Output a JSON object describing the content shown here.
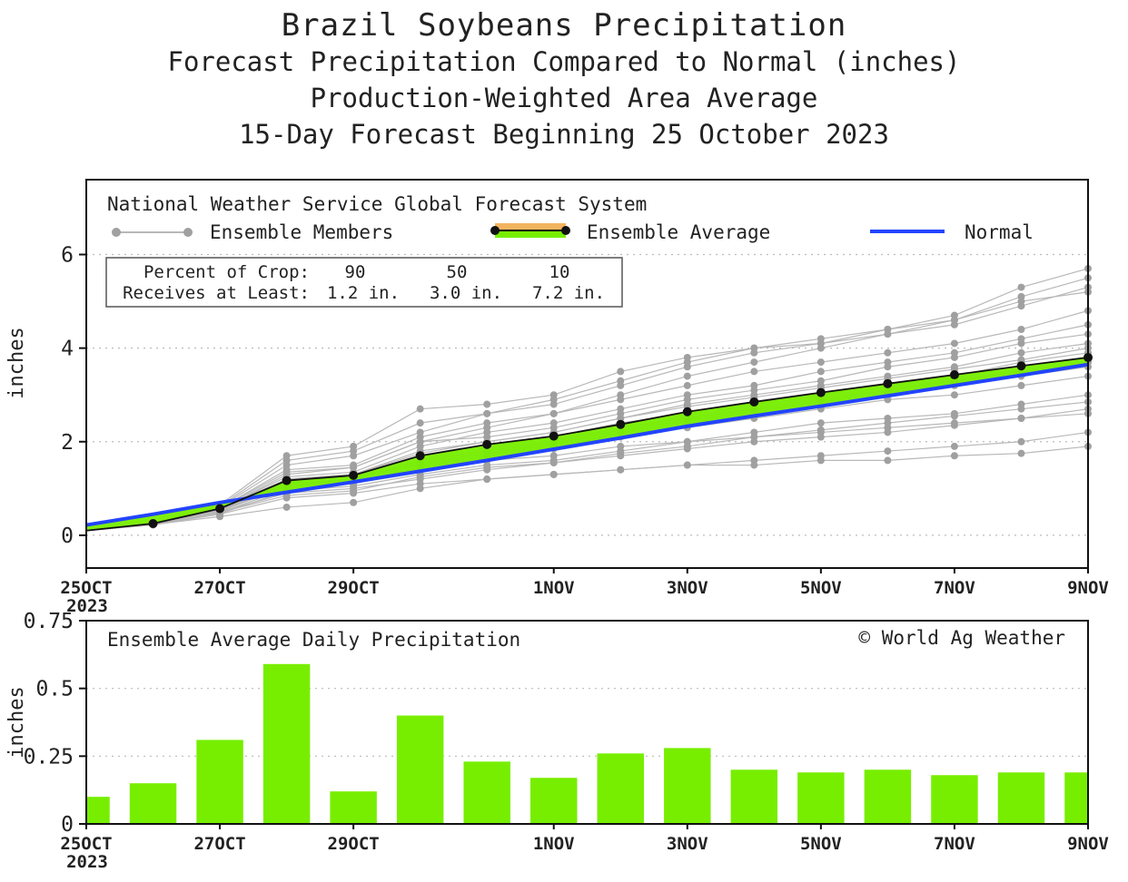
{
  "titles": {
    "main": "Brazil Soybeans Precipitation",
    "line2": "Forecast Precipitation Compared to Normal (inches)",
    "line3": "Production-Weighted Area Average",
    "line4": "15-Day Forecast Beginning 25 October 2023"
  },
  "colors": {
    "ensemble_members": "#b8b8b8",
    "ensemble_dots": "#a0a0a0",
    "ensemble_average": "#111111",
    "above_normal_fill": "#77ee00",
    "normal": "#2244ff",
    "bars": "#77ee00"
  },
  "chart_data": [
    {
      "type": "line",
      "source_label": "National Weather Service Global Forecast System",
      "legend": {
        "members": "Ensemble Members",
        "average": "Ensemble Average",
        "normal": "Normal"
      },
      "crop_box": {
        "row1_label": "Percent of Crop:",
        "row1_values": [
          "90",
          "50",
          "10"
        ],
        "row2_label": "Receives at Least:",
        "row2_values": [
          "1.2 in.",
          "3.0 in.",
          "7.2 in."
        ]
      },
      "ylabel": "inches",
      "ylim": [
        -0.7,
        7.6
      ],
      "yticks": [
        "0",
        "2",
        "4",
        "6"
      ],
      "ytick_values": [
        0,
        2,
        4,
        6
      ],
      "xticks": [
        {
          "day": 0,
          "label": "25OCT"
        },
        {
          "day": 2,
          "label": "27OCT"
        },
        {
          "day": 4,
          "label": "29OCT"
        },
        {
          "day": 7,
          "label": "1NOV"
        },
        {
          "day": 9,
          "label": "3NOV"
        },
        {
          "day": 11,
          "label": "5NOV"
        },
        {
          "day": 13,
          "label": "7NOV"
        },
        {
          "day": 15,
          "label": "9NOV"
        }
      ],
      "x_year": "2023",
      "ensemble_average": [
        0.1,
        0.25,
        0.57,
        1.17,
        1.28,
        1.7,
        1.94,
        2.12,
        2.37,
        2.64,
        2.85,
        3.05,
        3.24,
        3.43,
        3.62,
        3.8
      ],
      "normal": [
        0.22,
        0.45,
        0.7,
        0.92,
        1.14,
        1.37,
        1.6,
        1.84,
        2.08,
        2.33,
        2.55,
        2.76,
        2.98,
        3.2,
        3.42,
        3.65
      ],
      "ensemble_members": [
        [
          0.1,
          0.24,
          0.5,
          0.9,
          1.0,
          1.2,
          1.4,
          1.55,
          1.75,
          1.9,
          2.1,
          2.25,
          2.4,
          2.55,
          2.7,
          2.85
        ],
        [
          0.1,
          0.25,
          0.55,
          1.3,
          1.45,
          2.0,
          2.3,
          2.6,
          3.0,
          3.4,
          3.7,
          4.0,
          4.3,
          4.5,
          4.9,
          5.3
        ],
        [
          0.1,
          0.26,
          0.6,
          1.5,
          1.7,
          2.2,
          2.6,
          2.9,
          3.3,
          3.7,
          4.0,
          4.2,
          4.4,
          4.7,
          5.3,
          5.7
        ],
        [
          0.1,
          0.22,
          0.45,
          0.8,
          0.9,
          1.1,
          1.2,
          1.3,
          1.4,
          1.5,
          1.6,
          1.7,
          1.8,
          1.9,
          2.0,
          2.2
        ],
        [
          0.1,
          0.25,
          0.55,
          1.1,
          1.2,
          1.6,
          1.8,
          2.0,
          2.3,
          2.5,
          2.7,
          2.9,
          3.1,
          3.3,
          3.5,
          3.7
        ],
        [
          0.1,
          0.23,
          0.4,
          0.6,
          0.7,
          1.0,
          1.2,
          1.3,
          1.4,
          1.5,
          1.5,
          1.6,
          1.6,
          1.7,
          1.75,
          1.9
        ],
        [
          0.1,
          0.27,
          0.65,
          1.7,
          1.9,
          2.7,
          2.8,
          3.0,
          3.5,
          3.8,
          4.0,
          4.1,
          4.3,
          4.6,
          5.1,
          5.5
        ],
        [
          0.1,
          0.25,
          0.5,
          1.2,
          1.3,
          1.8,
          2.0,
          2.2,
          2.5,
          2.8,
          3.0,
          3.2,
          3.4,
          3.6,
          3.9,
          4.1
        ],
        [
          0.1,
          0.24,
          0.48,
          1.0,
          1.1,
          1.4,
          1.6,
          1.7,
          1.9,
          2.0,
          2.1,
          2.2,
          2.3,
          2.4,
          2.5,
          2.6
        ],
        [
          0.1,
          0.26,
          0.58,
          1.4,
          1.5,
          2.1,
          2.4,
          2.6,
          2.9,
          3.2,
          3.5,
          3.7,
          3.9,
          4.1,
          4.4,
          4.8
        ],
        [
          0.1,
          0.25,
          0.52,
          1.15,
          1.25,
          1.5,
          1.7,
          1.9,
          2.1,
          2.3,
          2.5,
          2.7,
          2.9,
          3.0,
          3.2,
          3.4
        ],
        [
          0.1,
          0.25,
          0.56,
          1.25,
          1.35,
          1.9,
          2.2,
          2.4,
          2.7,
          3.0,
          3.2,
          3.5,
          3.7,
          3.9,
          4.2,
          4.5
        ],
        [
          0.1,
          0.24,
          0.46,
          0.95,
          1.05,
          1.3,
          1.5,
          1.6,
          1.8,
          2.0,
          2.2,
          2.4,
          2.5,
          2.6,
          2.8,
          3.0
        ],
        [
          0.1,
          0.26,
          0.62,
          1.6,
          1.8,
          2.4,
          2.6,
          2.8,
          3.2,
          3.6,
          3.9,
          4.1,
          4.4,
          4.6,
          5.0,
          5.2
        ],
        [
          0.1,
          0.25,
          0.54,
          1.1,
          1.2,
          1.7,
          1.9,
          2.1,
          2.4,
          2.6,
          2.8,
          3.0,
          3.2,
          3.4,
          3.7,
          3.9
        ],
        [
          0.1,
          0.25,
          0.53,
          1.05,
          1.15,
          1.45,
          1.65,
          1.85,
          2.2,
          2.4,
          2.6,
          2.8,
          3.0,
          3.2,
          3.4,
          3.6
        ],
        [
          0.1,
          0.26,
          0.57,
          1.35,
          1.45,
          2.0,
          2.1,
          2.3,
          2.6,
          2.9,
          3.1,
          3.3,
          3.6,
          3.8,
          4.1,
          4.3
        ],
        [
          0.1,
          0.24,
          0.49,
          0.85,
          0.95,
          1.25,
          1.45,
          1.55,
          1.7,
          1.85,
          2.0,
          2.1,
          2.2,
          2.35,
          2.5,
          2.7
        ],
        [
          0.1,
          0.25,
          0.55,
          1.2,
          1.3,
          1.75,
          2.0,
          2.2,
          2.5,
          2.75,
          2.95,
          3.15,
          3.35,
          3.55,
          3.75,
          4.0
        ],
        [
          0.1,
          0.25,
          0.51,
          1.05,
          1.2,
          1.55,
          1.75,
          1.95,
          2.25,
          2.45,
          2.65,
          2.85,
          3.05,
          3.25,
          3.45,
          3.7
        ]
      ]
    },
    {
      "type": "bar",
      "title": "Ensemble Average Daily Precipitation",
      "credit": "© World Ag Weather",
      "ylabel": "inches",
      "ylim": [
        0,
        0.75
      ],
      "yticks": [
        "0",
        "0.25",
        "0.5",
        "0.75"
      ],
      "ytick_values": [
        0,
        0.25,
        0.5,
        0.75
      ],
      "xticks": [
        {
          "day": 0,
          "label": "25OCT"
        },
        {
          "day": 2,
          "label": "27OCT"
        },
        {
          "day": 4,
          "label": "29OCT"
        },
        {
          "day": 7,
          "label": "1NOV"
        },
        {
          "day": 9,
          "label": "3NOV"
        },
        {
          "day": 11,
          "label": "5NOV"
        },
        {
          "day": 13,
          "label": "7NOV"
        },
        {
          "day": 15,
          "label": "9NOV"
        }
      ],
      "x_year": "2023",
      "values": [
        0.1,
        0.15,
        0.31,
        0.59,
        0.12,
        0.4,
        0.23,
        0.17,
        0.26,
        0.28,
        0.2,
        0.19,
        0.2,
        0.18,
        0.19,
        0.19
      ]
    }
  ]
}
